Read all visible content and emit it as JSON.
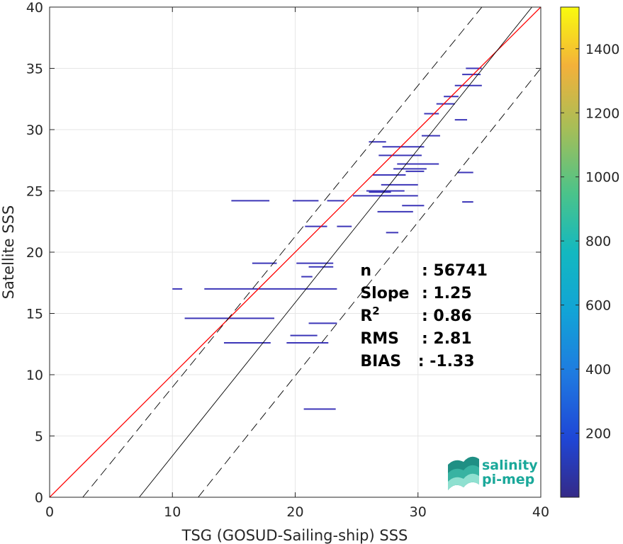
{
  "chart_data": {
    "type": "scatter",
    "xlabel": "TSG (GOSUD-Sailing-ship) SSS",
    "ylabel": "Satellite SSS",
    "xlim": [
      0,
      40
    ],
    "ylim": [
      0,
      40
    ],
    "xticks": [
      0,
      10,
      20,
      30,
      40
    ],
    "yticks": [
      0,
      5,
      10,
      15,
      20,
      25,
      30,
      35,
      40
    ],
    "grid": true,
    "colorbar": {
      "min": 0,
      "max": 1530,
      "ticks": [
        200,
        400,
        600,
        800,
        1000,
        1200,
        1400
      ],
      "colormap": "parula"
    },
    "reference_lines": [
      {
        "kind": "one-to-one",
        "color": "#ff0000",
        "x": [
          0,
          40
        ],
        "y": [
          0,
          40
        ]
      },
      {
        "kind": "regression",
        "color": "#000000",
        "style": "solid",
        "x": [
          7.3,
          40
        ],
        "y": [
          0,
          40.9
        ]
      },
      {
        "kind": "upper-bound",
        "color": "#000000",
        "style": "dashed",
        "x": [
          2.7,
          40
        ],
        "y": [
          0,
          45.9
        ]
      },
      {
        "kind": "lower-bound",
        "color": "#000000",
        "style": "dashed",
        "x": [
          12.1,
          40
        ],
        "y": [
          0,
          35
        ]
      }
    ],
    "segments": [
      [
        14.8,
        17.9,
        24.2
      ],
      [
        19.8,
        21.9,
        24.2
      ],
      [
        22.6,
        24.0,
        24.2
      ],
      [
        24.7,
        30.0,
        24.6
      ],
      [
        25.8,
        28.9,
        25.0
      ],
      [
        26.3,
        29.0,
        26.3
      ],
      [
        27.0,
        30.0,
        25.5
      ],
      [
        28.0,
        30.7,
        26.8
      ],
      [
        26.7,
        29.6,
        23.3
      ],
      [
        27.4,
        28.4,
        21.6
      ],
      [
        26.0,
        27.4,
        29.0
      ],
      [
        26.8,
        30.3,
        27.9
      ],
      [
        27.1,
        30.5,
        28.6
      ],
      [
        28.3,
        31.7,
        27.2
      ],
      [
        30.3,
        31.8,
        29.5
      ],
      [
        29.0,
        30.5,
        26.6
      ],
      [
        30.5,
        31.7,
        31.3
      ],
      [
        31.5,
        33.0,
        32.1
      ],
      [
        32.1,
        33.3,
        32.7
      ],
      [
        33.0,
        35.2,
        33.6
      ],
      [
        33.6,
        35.1,
        34.5
      ],
      [
        33.9,
        35.2,
        35.0
      ],
      [
        33.0,
        34.0,
        30.8
      ],
      [
        33.2,
        34.5,
        26.5
      ],
      [
        33.6,
        34.5,
        24.1
      ],
      [
        10.0,
        10.8,
        17.0
      ],
      [
        12.6,
        23.4,
        17.0
      ],
      [
        11.0,
        18.3,
        14.6
      ],
      [
        14.2,
        18.0,
        12.6
      ],
      [
        19.3,
        22.7,
        12.6
      ],
      [
        19.6,
        21.8,
        13.2
      ],
      [
        21.1,
        23.4,
        14.2
      ],
      [
        21.1,
        23.1,
        18.8
      ],
      [
        16.5,
        18.5,
        19.1
      ],
      [
        20.1,
        23.1,
        19.1
      ],
      [
        20.7,
        23.3,
        7.2
      ],
      [
        20.8,
        22.6,
        22.1
      ],
      [
        23.4,
        24.6,
        22.1
      ],
      [
        20.5,
        21.4,
        18.0
      ],
      [
        28.7,
        30.5,
        23.8
      ],
      [
        26.0,
        27.8,
        24.9
      ]
    ],
    "stats": [
      {
        "label": "n",
        "value": ": 56741",
        "sup": "",
        "value_x": 30.3
      },
      {
        "label": "Slope",
        "value": ": 1.25",
        "sup": "",
        "value_x": 30.3
      },
      {
        "label": "R",
        "value": ": 0.86",
        "sup": "2",
        "value_x": 30.3
      },
      {
        "label": "RMS",
        "value": ": 2.81",
        "sup": "",
        "value_x": 30.3
      },
      {
        "label": "BIAS",
        "value": ": -1.33",
        "sup": "",
        "value_x": 30.0
      }
    ]
  },
  "logo": {
    "line1": "salinity",
    "line2": "pi-mep"
  }
}
